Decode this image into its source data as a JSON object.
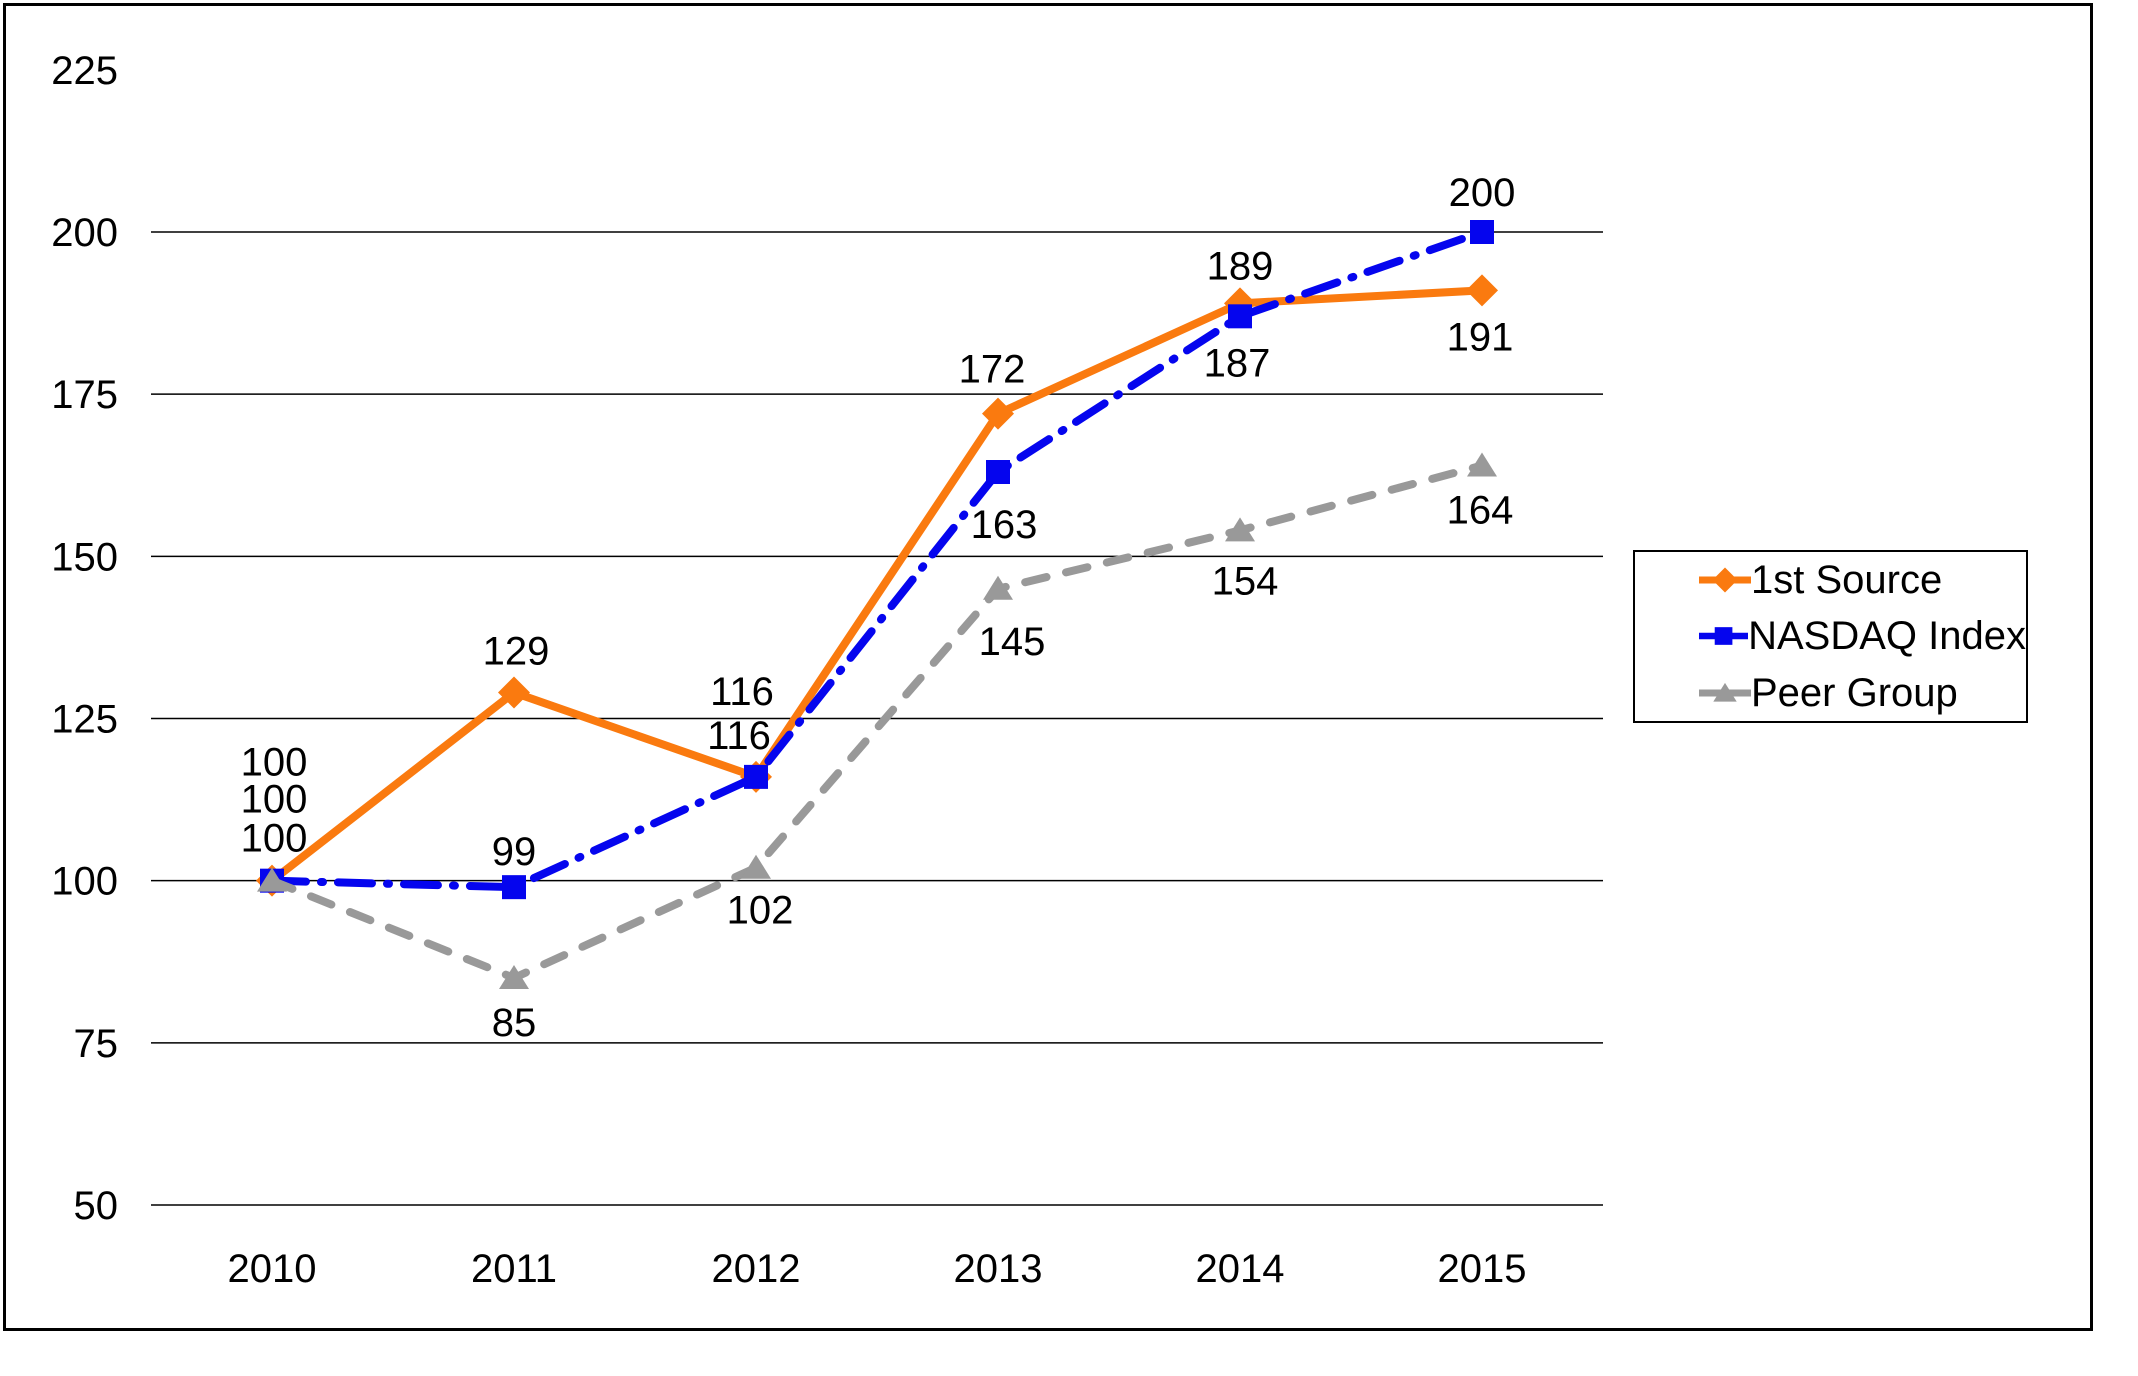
{
  "chart_data": {
    "type": "line",
    "title": "",
    "categories": [
      "2010",
      "2011",
      "2012",
      "2013",
      "2014",
      "2015"
    ],
    "series": [
      {
        "name": "1st Source",
        "color": "#FA7A0F",
        "marker": "diamond",
        "line_style": "solid",
        "values": [
          100,
          129,
          116,
          172,
          189,
          191
        ],
        "label_offsets": [
          [
            2,
            -119
          ],
          [
            2,
            -42
          ],
          [
            -14,
            -86
          ],
          [
            -6,
            -45
          ],
          [
            0,
            -38
          ],
          [
            -2,
            46
          ]
        ]
      },
      {
        "name": "NASDAQ Index",
        "color": "#0505EE",
        "marker": "square",
        "line_style": "dash_dot",
        "values": [
          100,
          99,
          116,
          163,
          187,
          200
        ],
        "label_offsets": [
          [
            2,
            -82
          ],
          [
            0,
            -36
          ],
          [
            -17,
            -42
          ],
          [
            6,
            52
          ],
          [
            -3,
            46
          ],
          [
            0,
            -40
          ]
        ]
      },
      {
        "name": "Peer Group",
        "color": "#999999",
        "marker": "triangle",
        "line_style": "dash",
        "values": [
          100,
          85,
          102,
          145,
          154,
          164
        ],
        "label_offsets": [
          [
            2,
            -43
          ],
          [
            0,
            44
          ],
          [
            4,
            42
          ],
          [
            14,
            52
          ],
          [
            5,
            50
          ],
          [
            -2,
            44
          ]
        ]
      }
    ],
    "y_axis": {
      "min": 50,
      "max": 225,
      "tick_step": 25,
      "tick_labels": [
        "225",
        "200",
        "175",
        "150",
        "125",
        "100",
        "75",
        "50"
      ],
      "gridline_values": [
        200,
        175,
        150,
        125,
        100,
        75,
        50
      ]
    },
    "x_axis": {
      "tick_labels": [
        "2010",
        "2011",
        "2012",
        "2013",
        "2014",
        "2015"
      ]
    },
    "legend": {
      "position": "right",
      "items": [
        "1st Source",
        "NASDAQ Index",
        "Peer Group"
      ]
    },
    "grid": true,
    "gridline_color": "#000000",
    "text_color": "#000000"
  }
}
